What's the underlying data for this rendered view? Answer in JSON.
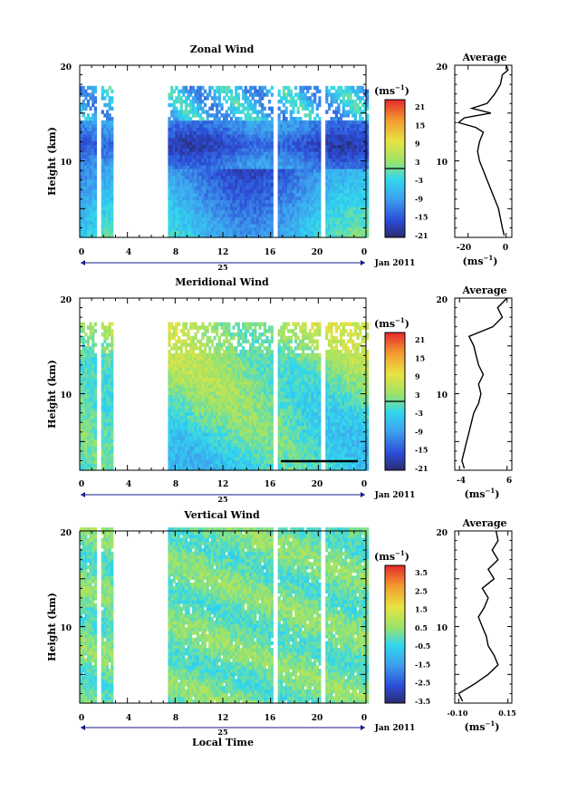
{
  "figure": {
    "xlabel": "Local Time",
    "date_label": "Jan 2011",
    "colorbar_unit": "(ms",
    "colorbar_unit_exp": "−1",
    "avg_unit": "(ms",
    "avg_unit_exp": "−1"
  },
  "chart_data": [
    {
      "type": "heatmap",
      "title": "Zonal Wind",
      "ylabel": "Height (km)",
      "ylim": [
        2,
        20
      ],
      "yticks": [
        "10",
        "20"
      ],
      "xlim": [
        0,
        24
      ],
      "xticks": [
        "0",
        "4",
        "8",
        "12",
        "16",
        "20",
        "0"
      ],
      "day_label": "25",
      "colorbar_ticks": [
        "21",
        "15",
        "9",
        "3",
        "-3",
        "-9",
        "-15",
        "-21"
      ],
      "colorbar_range": [
        -24,
        24
      ],
      "data_gaps_hours": [
        [
          1.4,
          1.8
        ],
        [
          2.8,
          7.5
        ],
        [
          16.2,
          16.6
        ],
        [
          20.2,
          20.5
        ]
      ],
      "average_profile": {
        "title": "Average",
        "xticks": [
          "-20",
          "0"
        ],
        "xlim": [
          -27,
          3
        ],
        "yticks": [
          "10",
          "20"
        ],
        "height_km": [
          2.2,
          3,
          4,
          5,
          6,
          7,
          8,
          9,
          10,
          11,
          12,
          13,
          13.5,
          14,
          14.5,
          15,
          15.5,
          16,
          17,
          18,
          19,
          19.5,
          20
        ],
        "value_ms": [
          -1,
          -2,
          -3,
          -4,
          -6,
          -8,
          -10,
          -12,
          -14,
          -15,
          -14,
          -12,
          -16,
          -25,
          -22,
          -8,
          -18,
          -10,
          -6,
          -3,
          -2,
          1,
          0
        ]
      }
    },
    {
      "type": "heatmap",
      "title": "Meridional Wind",
      "ylabel": "Height (km)",
      "ylim": [
        2,
        20
      ],
      "yticks": [
        "10",
        "20"
      ],
      "xlim": [
        0,
        24
      ],
      "xticks": [
        "0",
        "4",
        "8",
        "12",
        "16",
        "20",
        "0"
      ],
      "day_label": "25",
      "colorbar_ticks": [
        "21",
        "15",
        "9",
        "3",
        "-3",
        "-9",
        "-15",
        "-21"
      ],
      "colorbar_range": [
        -24,
        24
      ],
      "data_gaps_hours": [
        [
          1.4,
          1.8
        ],
        [
          2.8,
          7.5
        ],
        [
          16.2,
          16.6
        ],
        [
          20.2,
          20.5
        ]
      ],
      "average_profile": {
        "title": "Average",
        "xticks": [
          "-4",
          "6"
        ],
        "xlim": [
          -5,
          7
        ],
        "yticks": [
          "10",
          "20"
        ],
        "height_km": [
          2.2,
          3,
          4,
          5,
          6,
          7,
          8,
          9,
          10,
          11,
          12,
          13,
          14,
          15,
          16,
          17,
          18,
          19,
          20
        ],
        "value_ms": [
          -3,
          -3.5,
          -3,
          -2.5,
          -2,
          -1.5,
          -1,
          0,
          0.5,
          0,
          1,
          0,
          -0.5,
          -1,
          -2,
          3,
          5,
          4,
          6
        ]
      }
    },
    {
      "type": "heatmap",
      "title": "Vertical Wind",
      "ylabel": "Height (km)",
      "ylim": [
        2,
        20
      ],
      "yticks": [
        "10",
        "20"
      ],
      "xlim": [
        0,
        24
      ],
      "xticks": [
        "0",
        "4",
        "8",
        "12",
        "16",
        "20",
        "0"
      ],
      "day_label": "25",
      "colorbar_ticks": [
        "3.5",
        "2.5",
        "1.5",
        "0.5",
        "-0.5",
        "-1.5",
        "-2.5",
        "-3.5"
      ],
      "colorbar_range": [
        -4,
        4
      ],
      "data_gaps_hours": [
        [
          1.4,
          1.8
        ],
        [
          2.8,
          7.5
        ],
        [
          16.2,
          16.6
        ],
        [
          20.2,
          20.5
        ]
      ],
      "average_profile": {
        "title": "Average",
        "xticks": [
          "-0.10",
          "0.15"
        ],
        "xlim": [
          -0.12,
          0.17
        ],
        "yticks": [
          "10",
          "20"
        ],
        "height_km": [
          2.2,
          3,
          4,
          5,
          6,
          7,
          8,
          9,
          10,
          11,
          12,
          13,
          14,
          15,
          16,
          17,
          18,
          19,
          20
        ],
        "value_ms": [
          -0.08,
          -0.1,
          -0.02,
          0.05,
          0.1,
          0.08,
          0.05,
          0.04,
          0.02,
          0.0,
          0.03,
          0.05,
          0.02,
          0.08,
          0.05,
          0.1,
          0.07,
          0.1,
          0.09
        ]
      }
    }
  ]
}
